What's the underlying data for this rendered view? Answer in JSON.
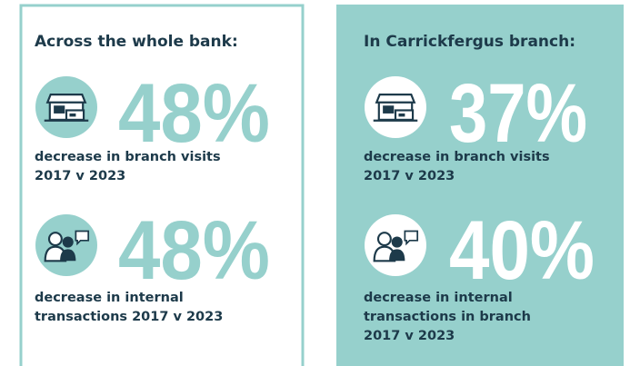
{
  "panels": [
    {
      "heading": "Across the whole bank:",
      "stats": [
        {
          "value": "48%",
          "caption": [
            "decrease in branch visits",
            "2017 v 2023"
          ]
        },
        {
          "value": "48%",
          "caption": [
            "decrease in internal",
            "transactions 2017 v 2023"
          ]
        }
      ]
    },
    {
      "heading": "In Carrickfergus branch:",
      "stats": [
        {
          "value": "37%",
          "caption": [
            "decrease in branch visits",
            "2017 v 2023"
          ]
        },
        {
          "value": "40%",
          "caption": [
            "decrease in internal",
            "transactions in branch",
            "2017 v 2023"
          ]
        }
      ]
    }
  ]
}
